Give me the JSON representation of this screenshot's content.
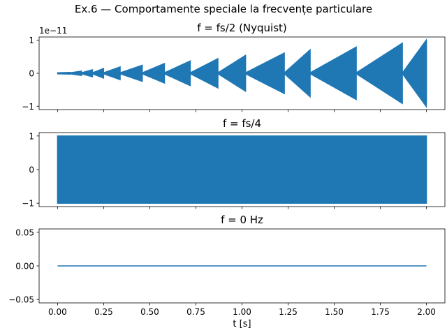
{
  "figure": {
    "suptitle": "Ex.6 — Comportamente speciale la frecvențe particulare"
  },
  "colors": {
    "line": "#1f77b4",
    "axes": "#000000",
    "background": "#ffffff"
  },
  "chart_data": [
    {
      "type": "line",
      "title": "f = fs/2 (Nyquist)",
      "xlabel": "",
      "ylabel": "",
      "scale_label": "1e−11",
      "xlim": [
        -0.1,
        2.1
      ],
      "ylim": [
        -1.1,
        1.1
      ],
      "yticks": [
        -1,
        0,
        1
      ],
      "yticklabels": [
        "−1",
        "0",
        "1"
      ],
      "xticks": [
        0,
        0.25,
        0.5,
        0.75,
        1.0,
        1.25,
        1.5,
        1.75,
        2.0
      ],
      "show_xticklabels": false,
      "grid": false,
      "signal": "sawtooth-growing envelope, dense oscillation around 0 (amplitude in units of 1e-11)",
      "envelope_segments": [
        {
          "x0": 0.0,
          "x1": 0.07,
          "amp": 0.03
        },
        {
          "x0": 0.07,
          "x1": 0.13,
          "amp": 0.07
        },
        {
          "x0": 0.13,
          "x1": 0.19,
          "amp": 0.11
        },
        {
          "x0": 0.19,
          "x1": 0.25,
          "amp": 0.15
        },
        {
          "x0": 0.25,
          "x1": 0.34,
          "amp": 0.2
        },
        {
          "x0": 0.34,
          "x1": 0.46,
          "amp": 0.25
        },
        {
          "x0": 0.46,
          "x1": 0.58,
          "amp": 0.3
        },
        {
          "x0": 0.58,
          "x1": 0.72,
          "amp": 0.38
        },
        {
          "x0": 0.72,
          "x1": 0.87,
          "amp": 0.45
        },
        {
          "x0": 0.87,
          "x1": 1.02,
          "amp": 0.55
        },
        {
          "x0": 1.02,
          "x1": 1.23,
          "amp": 0.62
        },
        {
          "x0": 1.23,
          "x1": 1.37,
          "amp": 0.72
        },
        {
          "x0": 1.37,
          "x1": 1.62,
          "amp": 0.8
        },
        {
          "x0": 1.62,
          "x1": 1.87,
          "amp": 0.92
        },
        {
          "x0": 1.87,
          "x1": 2.0,
          "amp": 1.02
        }
      ],
      "end_spike": 1.0
    },
    {
      "type": "line",
      "title": "f = fs/4",
      "xlabel": "",
      "ylabel": "",
      "xlim": [
        -0.1,
        2.1
      ],
      "ylim": [
        -1.1,
        1.1
      ],
      "yticks": [
        -1,
        0,
        1
      ],
      "yticklabels": [
        "−1",
        "0",
        "1"
      ],
      "xticks": [
        0,
        0.25,
        0.5,
        0.75,
        1.0,
        1.25,
        1.5,
        1.75,
        2.0
      ],
      "show_xticklabels": false,
      "grid": false,
      "signal": "dense oscillation filling band between -1 and 1",
      "band": [
        -1,
        1
      ],
      "x_range": [
        0,
        2
      ]
    },
    {
      "type": "line",
      "title": "f = 0 Hz",
      "xlabel": "t [s]",
      "ylabel": "",
      "xlim": [
        -0.1,
        2.1
      ],
      "ylim": [
        -0.055,
        0.055
      ],
      "yticks": [
        -0.05,
        0.0,
        0.05
      ],
      "yticklabels": [
        "−0.05",
        "0.00",
        "0.05"
      ],
      "xticks": [
        0,
        0.25,
        0.5,
        0.75,
        1.0,
        1.25,
        1.5,
        1.75,
        2.0
      ],
      "xticklabels": [
        "0.00",
        "0.25",
        "0.50",
        "0.75",
        "1.00",
        "1.25",
        "1.50",
        "1.75",
        "2.00"
      ],
      "show_xticklabels": true,
      "grid": false,
      "x": [
        0,
        2
      ],
      "y": [
        0,
        0
      ]
    }
  ]
}
